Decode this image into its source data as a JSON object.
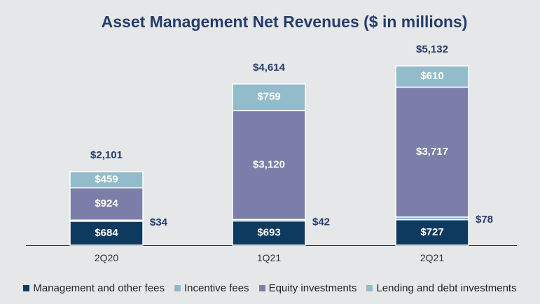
{
  "chart_data": {
    "type": "bar",
    "stacked": true,
    "title": "Asset Management Net Revenues ($ in millions)",
    "categories": [
      "2Q20",
      "1Q21",
      "2Q21"
    ],
    "series": [
      {
        "name": "Management and other fees",
        "color": "#0f3a60",
        "label_color": "#ffffff",
        "values": [
          684,
          693,
          727
        ],
        "labels": [
          "$684",
          "$693",
          "$727"
        ]
      },
      {
        "name": "Incentive fees",
        "color": "#8fb9c9",
        "label_color": "#253d6b",
        "values": [
          34,
          42,
          78
        ],
        "labels": [
          "$34",
          "$42",
          "$78"
        ]
      },
      {
        "name": "Equity investments",
        "color": "#7b7ea8",
        "label_color": "#ffffff",
        "values": [
          924,
          3120,
          3717
        ],
        "labels": [
          "$924",
          "$3,120",
          "$3,717"
        ]
      },
      {
        "name": "Lending and debt investments",
        "color": "#93bccb",
        "label_color": "#ffffff",
        "values": [
          459,
          759,
          610
        ],
        "labels": [
          "$459",
          "$759",
          "$610"
        ]
      }
    ],
    "totals": [
      "$2,101",
      "$4,614",
      "$5,132"
    ],
    "ylim": [
      0,
      5132
    ],
    "xlabel": "",
    "ylabel": "",
    "grid": false,
    "legend_position": "bottom"
  }
}
